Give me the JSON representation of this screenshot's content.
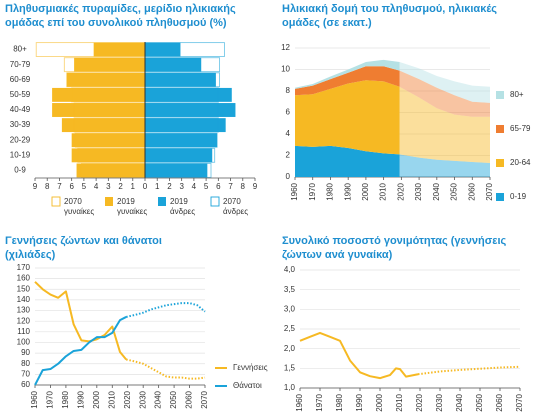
{
  "chart_data": [
    {
      "type": "pyramid",
      "title": "Πληθυσμιακές πυραμίδες, μερίδιο ηλικιακής ομάδας επί του συνολικού πληθυσμού (%)",
      "categories": [
        "80+",
        "70-79",
        "60-69",
        "50-59",
        "40-49",
        "30-39",
        "20-29",
        "10-19",
        "0-9"
      ],
      "xlim": [
        -9,
        9
      ],
      "xticks": [
        {
          "value": -9,
          "label": "9"
        },
        {
          "value": -8,
          "label": "8"
        },
        {
          "value": -7,
          "label": "7"
        },
        {
          "value": -6,
          "label": "6"
        },
        {
          "value": -5,
          "label": "5"
        },
        {
          "value": -4,
          "label": "4"
        },
        {
          "value": -3,
          "label": "3"
        },
        {
          "value": -2,
          "label": "2"
        },
        {
          "value": -1,
          "label": "1"
        },
        0,
        1,
        2,
        3,
        4,
        5,
        6,
        7,
        8,
        9
      ],
      "series": [
        {
          "name": "2070 γυναίκες",
          "side": "left",
          "style": "outline",
          "color": "#f6b923",
          "values": [
            8.9,
            6.6,
            6.4,
            6.0,
            5.8,
            5.8,
            5.7,
            5.5,
            5.2
          ]
        },
        {
          "name": "2019 γυναίκες",
          "side": "left",
          "style": "fill",
          "color": "#f6b923",
          "values": [
            4.2,
            5.8,
            6.4,
            7.6,
            7.6,
            6.8,
            6.0,
            6.0,
            5.6
          ]
        },
        {
          "name": "2019 άνδρες",
          "side": "right",
          "style": "fill",
          "color": "#1aa3d9",
          "values": [
            2.9,
            4.6,
            5.8,
            7.1,
            7.4,
            6.6,
            5.9,
            5.5,
            5.1
          ]
        },
        {
          "name": "2070 άνδρες",
          "side": "right",
          "style": "outline",
          "color": "#1aa3d9",
          "values": [
            6.5,
            6.1,
            6.1,
            6.0,
            6.0,
            6.0,
            5.9,
            5.7,
            5.4
          ]
        }
      ]
    },
    {
      "type": "stacked-area",
      "title": "Ηλικιακή δομή του πληθυσμού, ηλικιακές ομάδες (σε εκατ.)",
      "x": [
        1960,
        1970,
        1980,
        1990,
        2000,
        2010,
        2019,
        2030,
        2040,
        2050,
        2060,
        2070
      ],
      "xlim": [
        1960,
        2070
      ],
      "xticks": [
        1960,
        1970,
        1980,
        1990,
        2000,
        2010,
        2020,
        2030,
        2040,
        2050,
        2060,
        2070
      ],
      "ylim": [
        0,
        12
      ],
      "yticks": [
        0,
        2,
        4,
        6,
        8,
        10,
        12
      ],
      "grid": true,
      "forecast_start": 2019,
      "series": [
        {
          "name": "0-19",
          "color": "#1aa3d9",
          "values": [
            2.9,
            2.8,
            2.9,
            2.7,
            2.4,
            2.2,
            2.1,
            1.8,
            1.6,
            1.5,
            1.4,
            1.3
          ]
        },
        {
          "name": "20-64",
          "color": "#f6b923",
          "values": [
            4.7,
            4.9,
            5.3,
            6.0,
            6.6,
            6.7,
            6.3,
            5.6,
            4.8,
            4.3,
            4.2,
            4.3
          ]
        },
        {
          "name": "65-79",
          "color": "#ef7d31",
          "values": [
            0.6,
            0.8,
            0.9,
            1.0,
            1.3,
            1.4,
            1.5,
            1.7,
            1.9,
            1.8,
            1.4,
            1.3
          ]
        },
        {
          "name": "80+",
          "color": "#b5e1e4",
          "values": [
            0.1,
            0.15,
            0.25,
            0.3,
            0.4,
            0.6,
            0.8,
            1.0,
            1.1,
            1.3,
            1.5,
            1.5
          ]
        }
      ]
    },
    {
      "type": "line",
      "title": "Γεννήσεις ζώντων και θάνατοι (χιλιάδες)",
      "x": [
        1960,
        1965,
        1970,
        1975,
        1980,
        1985,
        1990,
        1995,
        2000,
        2005,
        2010,
        2015,
        2019,
        2025,
        2030,
        2035,
        2040,
        2045,
        2050,
        2055,
        2060,
        2065,
        2070
      ],
      "xlim": [
        1960,
        2070
      ],
      "xticks": [
        1960,
        1970,
        1980,
        1990,
        2000,
        2010,
        2020,
        2030,
        2040,
        2050,
        2060,
        2070
      ],
      "ylim": [
        60,
        170
      ],
      "yticks": [
        60,
        70,
        80,
        90,
        100,
        110,
        120,
        130,
        140,
        150,
        160,
        170
      ],
      "grid": true,
      "forecast_start": 2019,
      "series": [
        {
          "name": "Γεννήσεις",
          "color": "#f6b923",
          "values": [
            157,
            150,
            145,
            142,
            148,
            117,
            102,
            101,
            103,
            107,
            115,
            91,
            84,
            82,
            80,
            76,
            72,
            68,
            67,
            67,
            66,
            66,
            67
          ]
        },
        {
          "name": "Θάνατοι",
          "color": "#1aa3d9",
          "values": [
            60,
            74,
            75,
            80,
            87,
            92,
            93,
            100,
            105,
            105,
            109,
            121,
            124,
            126,
            128,
            131,
            133,
            135,
            136,
            137,
            137,
            135,
            129
          ]
        }
      ]
    },
    {
      "type": "line",
      "title": "Συνολικό ποσοστό γονιμότητας (γεννήσεις ζώντων ανά γυναίκα)",
      "x": [
        1960,
        1965,
        1970,
        1975,
        1980,
        1985,
        1990,
        1995,
        2000,
        2005,
        2008,
        2010,
        2013,
        2019,
        2030,
        2040,
        2050,
        2060,
        2070
      ],
      "values": [
        2.2,
        2.3,
        2.4,
        2.3,
        2.2,
        1.7,
        1.4,
        1.3,
        1.25,
        1.33,
        1.5,
        1.48,
        1.29,
        1.35,
        1.42,
        1.46,
        1.49,
        1.52,
        1.54
      ],
      "color": "#f6b923",
      "xlim": [
        1960,
        2070
      ],
      "xticks": [
        1960,
        1970,
        1980,
        1990,
        2000,
        2010,
        2020,
        2030,
        2040,
        2050,
        2060,
        2070
      ],
      "ylim": [
        1,
        4
      ],
      "yticks": [
        {
          "value": 1,
          "label": "1,0"
        },
        {
          "value": 1.5,
          "label": "1,5"
        },
        {
          "value": 2,
          "label": "2,0"
        },
        {
          "value": 2.5,
          "label": "2,5"
        },
        {
          "value": 3,
          "label": "3,0"
        },
        {
          "value": 3.5,
          "label": "3,5"
        },
        {
          "value": 4,
          "label": "4,0"
        }
      ],
      "grid": true,
      "forecast_start": 2019
    }
  ]
}
